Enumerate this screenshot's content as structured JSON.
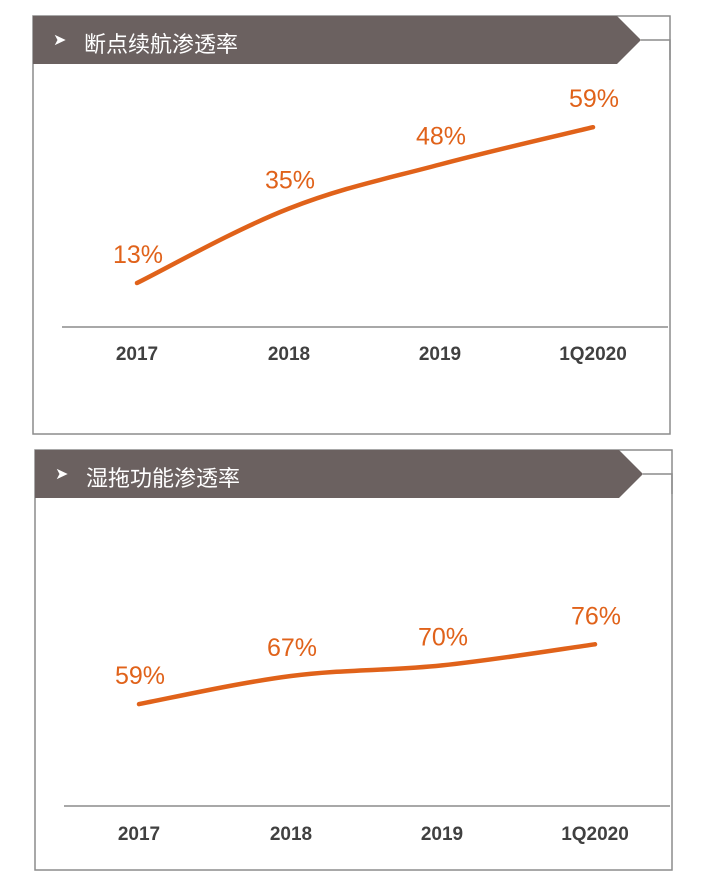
{
  "colors": {
    "header_bg": "#6b6160",
    "line": "#e0621a",
    "label": "#e0621a",
    "axis": "#8c8c8c",
    "frame": "#8c8c8c",
    "tick_text": "#404040"
  },
  "chart_data": [
    {
      "type": "line",
      "title": "断点续航渗透率",
      "categories": [
        "2017",
        "2018",
        "2019",
        "1Q2020"
      ],
      "values": [
        13,
        35,
        48,
        59
      ],
      "data_labels": [
        "13%",
        "35%",
        "48%",
        "59%"
      ],
      "unit": "%",
      "ylim": [
        0,
        70
      ],
      "grid": false,
      "legend": "none"
    },
    {
      "type": "line",
      "title": "湿拖功能渗透率",
      "categories": [
        "2017",
        "2018",
        "2019",
        "1Q2020"
      ],
      "values": [
        59,
        67,
        70,
        76
      ],
      "data_labels": [
        "59%",
        "67%",
        "70%",
        "76%"
      ],
      "unit": "%",
      "ylim": [
        30,
        100
      ],
      "grid": false,
      "legend": "none"
    }
  ]
}
